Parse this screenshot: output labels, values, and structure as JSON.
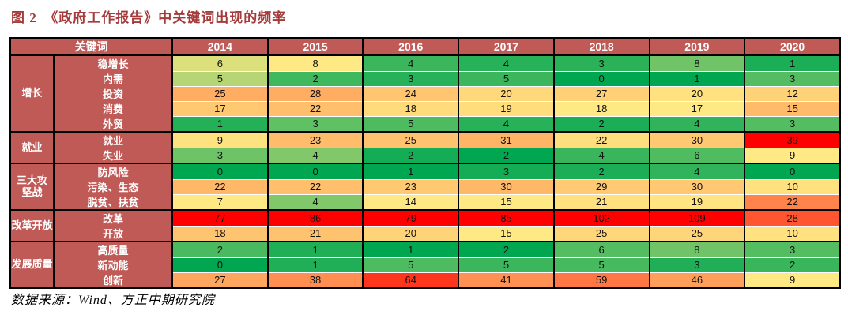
{
  "title": "图 2　《政府工作报告》中关键词出现的频率",
  "source_note": "数据来源：Wind、方正中期研究院",
  "colors": {
    "header_bg": "#C05A57",
    "header_text": "#FFFFFF",
    "title_text": "#A43A3A",
    "value_text": "#111111",
    "border": "#000000",
    "row_separator": "#FFFFFF",
    "scale_min_green": "#00A750",
    "scale_mid_yellow": "#FFE984",
    "scale_max_red": "#FF0000"
  },
  "chart_data": {
    "type": "heatmap",
    "title": "图 2 《政府工作报告》中关键词出现的频率",
    "header_label": "关键词",
    "columns": [
      "2014",
      "2015",
      "2016",
      "2017",
      "2018",
      "2019",
      "2020"
    ],
    "groups": [
      {
        "name": "增长",
        "display": "增长",
        "rows": [
          {
            "keyword": "稳增长",
            "values": [
              6,
              8,
              4,
              4,
              3,
              8,
              1
            ]
          },
          {
            "keyword": "内需",
            "values": [
              5,
              2,
              3,
              5,
              0,
              1,
              3
            ]
          },
          {
            "keyword": "投资",
            "values": [
              25,
              28,
              24,
              20,
              27,
              20,
              12
            ]
          },
          {
            "keyword": "消费",
            "values": [
              17,
              22,
              18,
              19,
              18,
              17,
              15
            ]
          },
          {
            "keyword": "外贸",
            "values": [
              1,
              3,
              5,
              4,
              2,
              4,
              3
            ]
          }
        ]
      },
      {
        "name": "就业",
        "display": "就业",
        "rows": [
          {
            "keyword": "就业",
            "values": [
              9,
              23,
              25,
              31,
              22,
              30,
              39
            ]
          },
          {
            "keyword": "失业",
            "values": [
              3,
              4,
              2,
              2,
              4,
              6,
              9
            ]
          }
        ]
      },
      {
        "name": "三大攻坚战",
        "display": "三大攻\n坚战",
        "rows": [
          {
            "keyword": "防风险",
            "values": [
              0,
              0,
              1,
              3,
              2,
              4,
              0
            ]
          },
          {
            "keyword": "污染、生态",
            "values": [
              22,
              22,
              23,
              30,
              29,
              30,
              10
            ]
          },
          {
            "keyword": "脱贫、扶贫",
            "values": [
              7,
              4,
              14,
              15,
              21,
              19,
              22
            ]
          }
        ]
      },
      {
        "name": "改革开放",
        "display": "改革开放",
        "rows": [
          {
            "keyword": "改革",
            "values": [
              77,
              86,
              79,
              85,
              102,
              109,
              28
            ]
          },
          {
            "keyword": "开放",
            "values": [
              18,
              21,
              20,
              15,
              25,
              25,
              10
            ]
          }
        ]
      },
      {
        "name": "发展质量",
        "display": "发展质量",
        "rows": [
          {
            "keyword": "高质量",
            "values": [
              2,
              1,
              1,
              2,
              6,
              8,
              3
            ]
          },
          {
            "keyword": "新动能",
            "values": [
              0,
              1,
              5,
              5,
              5,
              3,
              2
            ]
          },
          {
            "keyword": "创新",
            "values": [
              27,
              38,
              64,
              41,
              59,
              46,
              9
            ]
          }
        ]
      }
    ],
    "color_scale": {
      "applied": "per-column three-color scale: min → 50th percentile → max",
      "min_color": "#00A750",
      "mid_color": "#FFE984",
      "max_color": "#FF0000"
    },
    "legend_position": "none",
    "grid": "black lines between year columns and between keyword groups"
  }
}
